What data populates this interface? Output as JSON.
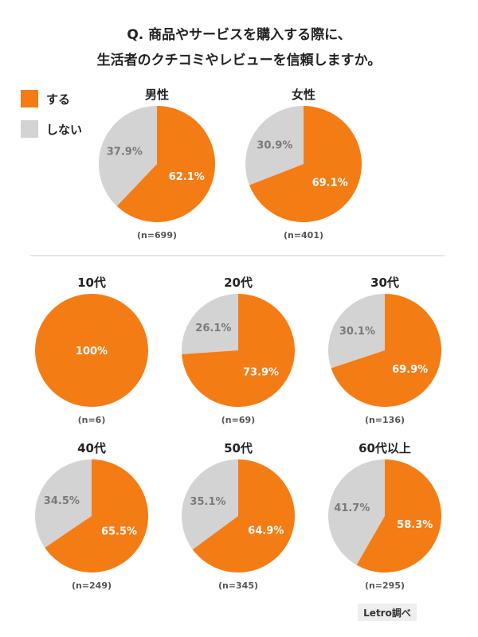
{
  "title": {
    "line1": "Q. 商品やサービスを購入する際に、",
    "line2": "生活者のクチコミやレビューを信頼しますか。"
  },
  "legend": [
    {
      "label": "する",
      "color": "#F47C14"
    },
    {
      "label": "しない",
      "color": "#D3D3D3"
    }
  ],
  "colors": {
    "yes": "#F47C14",
    "no": "#D3D3D3"
  },
  "source": "Letro調べ",
  "chart_data": [
    {
      "type": "pie",
      "title": "男性",
      "n_label": "(n=699)",
      "categories": [
        "する",
        "しない"
      ],
      "values": [
        62.1,
        37.9
      ],
      "labels": [
        "62.1%",
        "37.9%"
      ]
    },
    {
      "type": "pie",
      "title": "女性",
      "n_label": "(n=401)",
      "categories": [
        "する",
        "しない"
      ],
      "values": [
        69.1,
        30.9
      ],
      "labels": [
        "69.1%",
        "30.9%"
      ]
    },
    {
      "type": "pie",
      "title": "10代",
      "n_label": "(n=6)",
      "categories": [
        "する",
        "しない"
      ],
      "values": [
        100,
        0
      ],
      "labels": [
        "100%",
        ""
      ]
    },
    {
      "type": "pie",
      "title": "20代",
      "n_label": "(n=69)",
      "categories": [
        "する",
        "しない"
      ],
      "values": [
        73.9,
        26.1
      ],
      "labels": [
        "73.9%",
        "26.1%"
      ]
    },
    {
      "type": "pie",
      "title": "30代",
      "n_label": "(n=136)",
      "categories": [
        "する",
        "しない"
      ],
      "values": [
        69.9,
        30.1
      ],
      "labels": [
        "69.9%",
        "30.1%"
      ]
    },
    {
      "type": "pie",
      "title": "40代",
      "n_label": "(n=249)",
      "categories": [
        "する",
        "しない"
      ],
      "values": [
        65.5,
        34.5
      ],
      "labels": [
        "65.5%",
        "34.5%"
      ]
    },
    {
      "type": "pie",
      "title": "50代",
      "n_label": "(n=345)",
      "categories": [
        "する",
        "しない"
      ],
      "values": [
        64.9,
        35.1
      ],
      "labels": [
        "64.9%",
        "35.1%"
      ]
    },
    {
      "type": "pie",
      "title": "60代以上",
      "n_label": "(n=295)",
      "categories": [
        "する",
        "しない"
      ],
      "values": [
        58.3,
        41.7
      ],
      "labels": [
        "58.3%",
        "41.7%"
      ]
    }
  ]
}
